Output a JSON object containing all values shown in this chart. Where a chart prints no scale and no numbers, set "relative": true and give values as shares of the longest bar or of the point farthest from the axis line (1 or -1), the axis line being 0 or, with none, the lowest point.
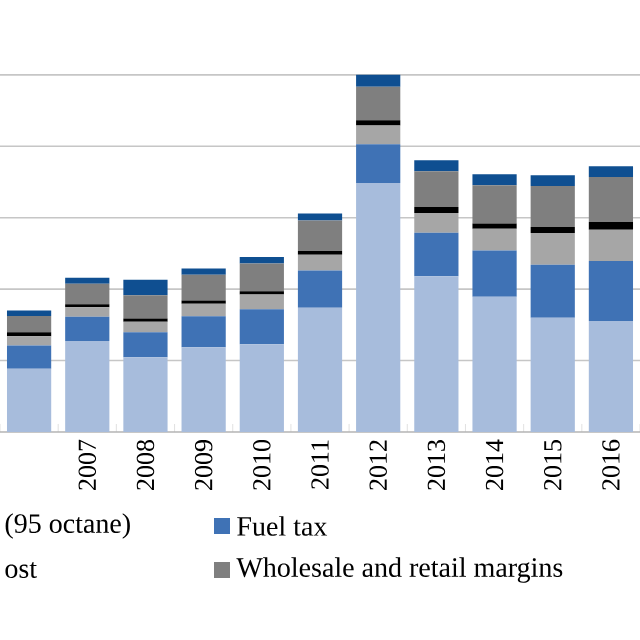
{
  "chart_data": {
    "type": "bar",
    "stacked": true,
    "relative": true,
    "grid": "y",
    "legend": "bottom",
    "categories": [
      null,
      "2007",
      "2008",
      "2009",
      "2010",
      "2011",
      "2012",
      "2013",
      "2014",
      "2015",
      "2016"
    ],
    "series": [
      {
        "color": "#a7bcdc",
        "values": [
          0.177,
          0.255,
          0.209,
          0.237,
          0.246,
          0.348,
          0.697,
          0.436,
          0.379,
          0.32,
          0.311
        ]
      },
      {
        "name": "Fuel tax",
        "color": "#3f72b5",
        "values": [
          0.065,
          0.068,
          0.07,
          0.087,
          0.098,
          0.104,
          0.109,
          0.122,
          0.129,
          0.148,
          0.168
        ]
      },
      {
        "color": "#a6a6a6",
        "values": [
          0.026,
          0.026,
          0.03,
          0.035,
          0.041,
          0.044,
          0.052,
          0.055,
          0.061,
          0.089,
          0.087
        ]
      },
      {
        "color": "#000000",
        "values": [
          0.011,
          0.009,
          0.009,
          0.009,
          0.009,
          0.011,
          0.015,
          0.017,
          0.015,
          0.017,
          0.022
        ]
      },
      {
        "name": "Wholesale and retail margins",
        "color": "#7f7f7f",
        "values": [
          0.046,
          0.057,
          0.065,
          0.072,
          0.078,
          0.085,
          0.094,
          0.1,
          0.107,
          0.115,
          0.126
        ]
      },
      {
        "color": "#0f4f91",
        "values": [
          0.015,
          0.017,
          0.043,
          0.018,
          0.018,
          0.02,
          0.033,
          0.031,
          0.031,
          0.03,
          0.03
        ]
      }
    ],
    "annotations": [
      "(95 octane)",
      "ost"
    ]
  }
}
